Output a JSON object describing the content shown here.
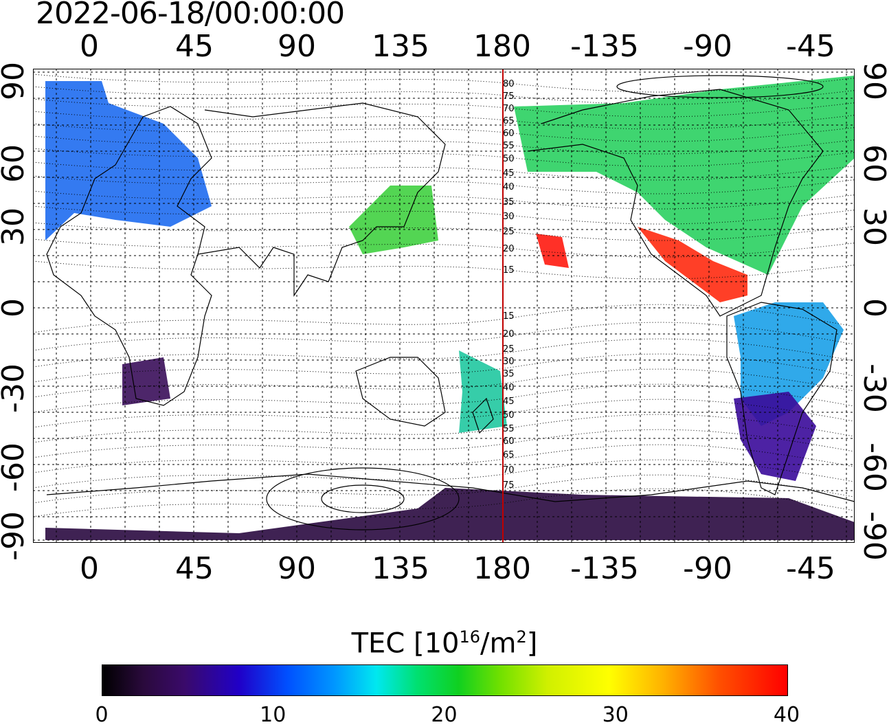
{
  "timestamp": "2022-06-18/00:00:00",
  "lon_ticks": [
    "0",
    "45",
    "90",
    "135",
    "180",
    "-135",
    "-90",
    "-45"
  ],
  "lat_ticks": [
    "90",
    "60",
    "30",
    "0",
    "-30",
    "-60",
    "-90"
  ],
  "mlat_labels": [
    "80",
    "75",
    "70",
    "65",
    "60",
    "55",
    "50",
    "45",
    "40",
    "35",
    "30",
    "25",
    "20",
    "15",
    "15",
    "20",
    "25",
    "30",
    "35",
    "40",
    "45",
    "50",
    "55",
    "60",
    "65",
    "70",
    "75"
  ],
  "colorbar": {
    "title_main": "TEC  [10",
    "title_exp": "16",
    "title_unit": "/m",
    "title_unit_exp": "2",
    "title_close": "]",
    "ticks": [
      "0",
      "10",
      "20",
      "30",
      "40"
    ],
    "min": 0,
    "max": 40,
    "colors": [
      "#000000",
      "#3a0a6a",
      "#0050ff",
      "#00e8f0",
      "#10d020",
      "#ffff00",
      "#ff0000"
    ]
  },
  "tec_regions": [
    {
      "name": "europe-north-atlantic",
      "color": "#1e6cf0"
    },
    {
      "name": "north-america",
      "color": "#2ad060"
    },
    {
      "name": "central-america",
      "color": "#ff2a10"
    },
    {
      "name": "hawaii",
      "color": "#ff1a10"
    },
    {
      "name": "east-asia",
      "color": "#40d040"
    },
    {
      "name": "south-america",
      "color": "#1aa0e8"
    },
    {
      "name": "south-america-south",
      "color": "#3a0a9a"
    },
    {
      "name": "southern-africa",
      "color": "#3a0e5a"
    },
    {
      "name": "antarctica",
      "color": "#2a0a40"
    },
    {
      "name": "new-zealand",
      "color": "#20c8a0"
    }
  ]
}
